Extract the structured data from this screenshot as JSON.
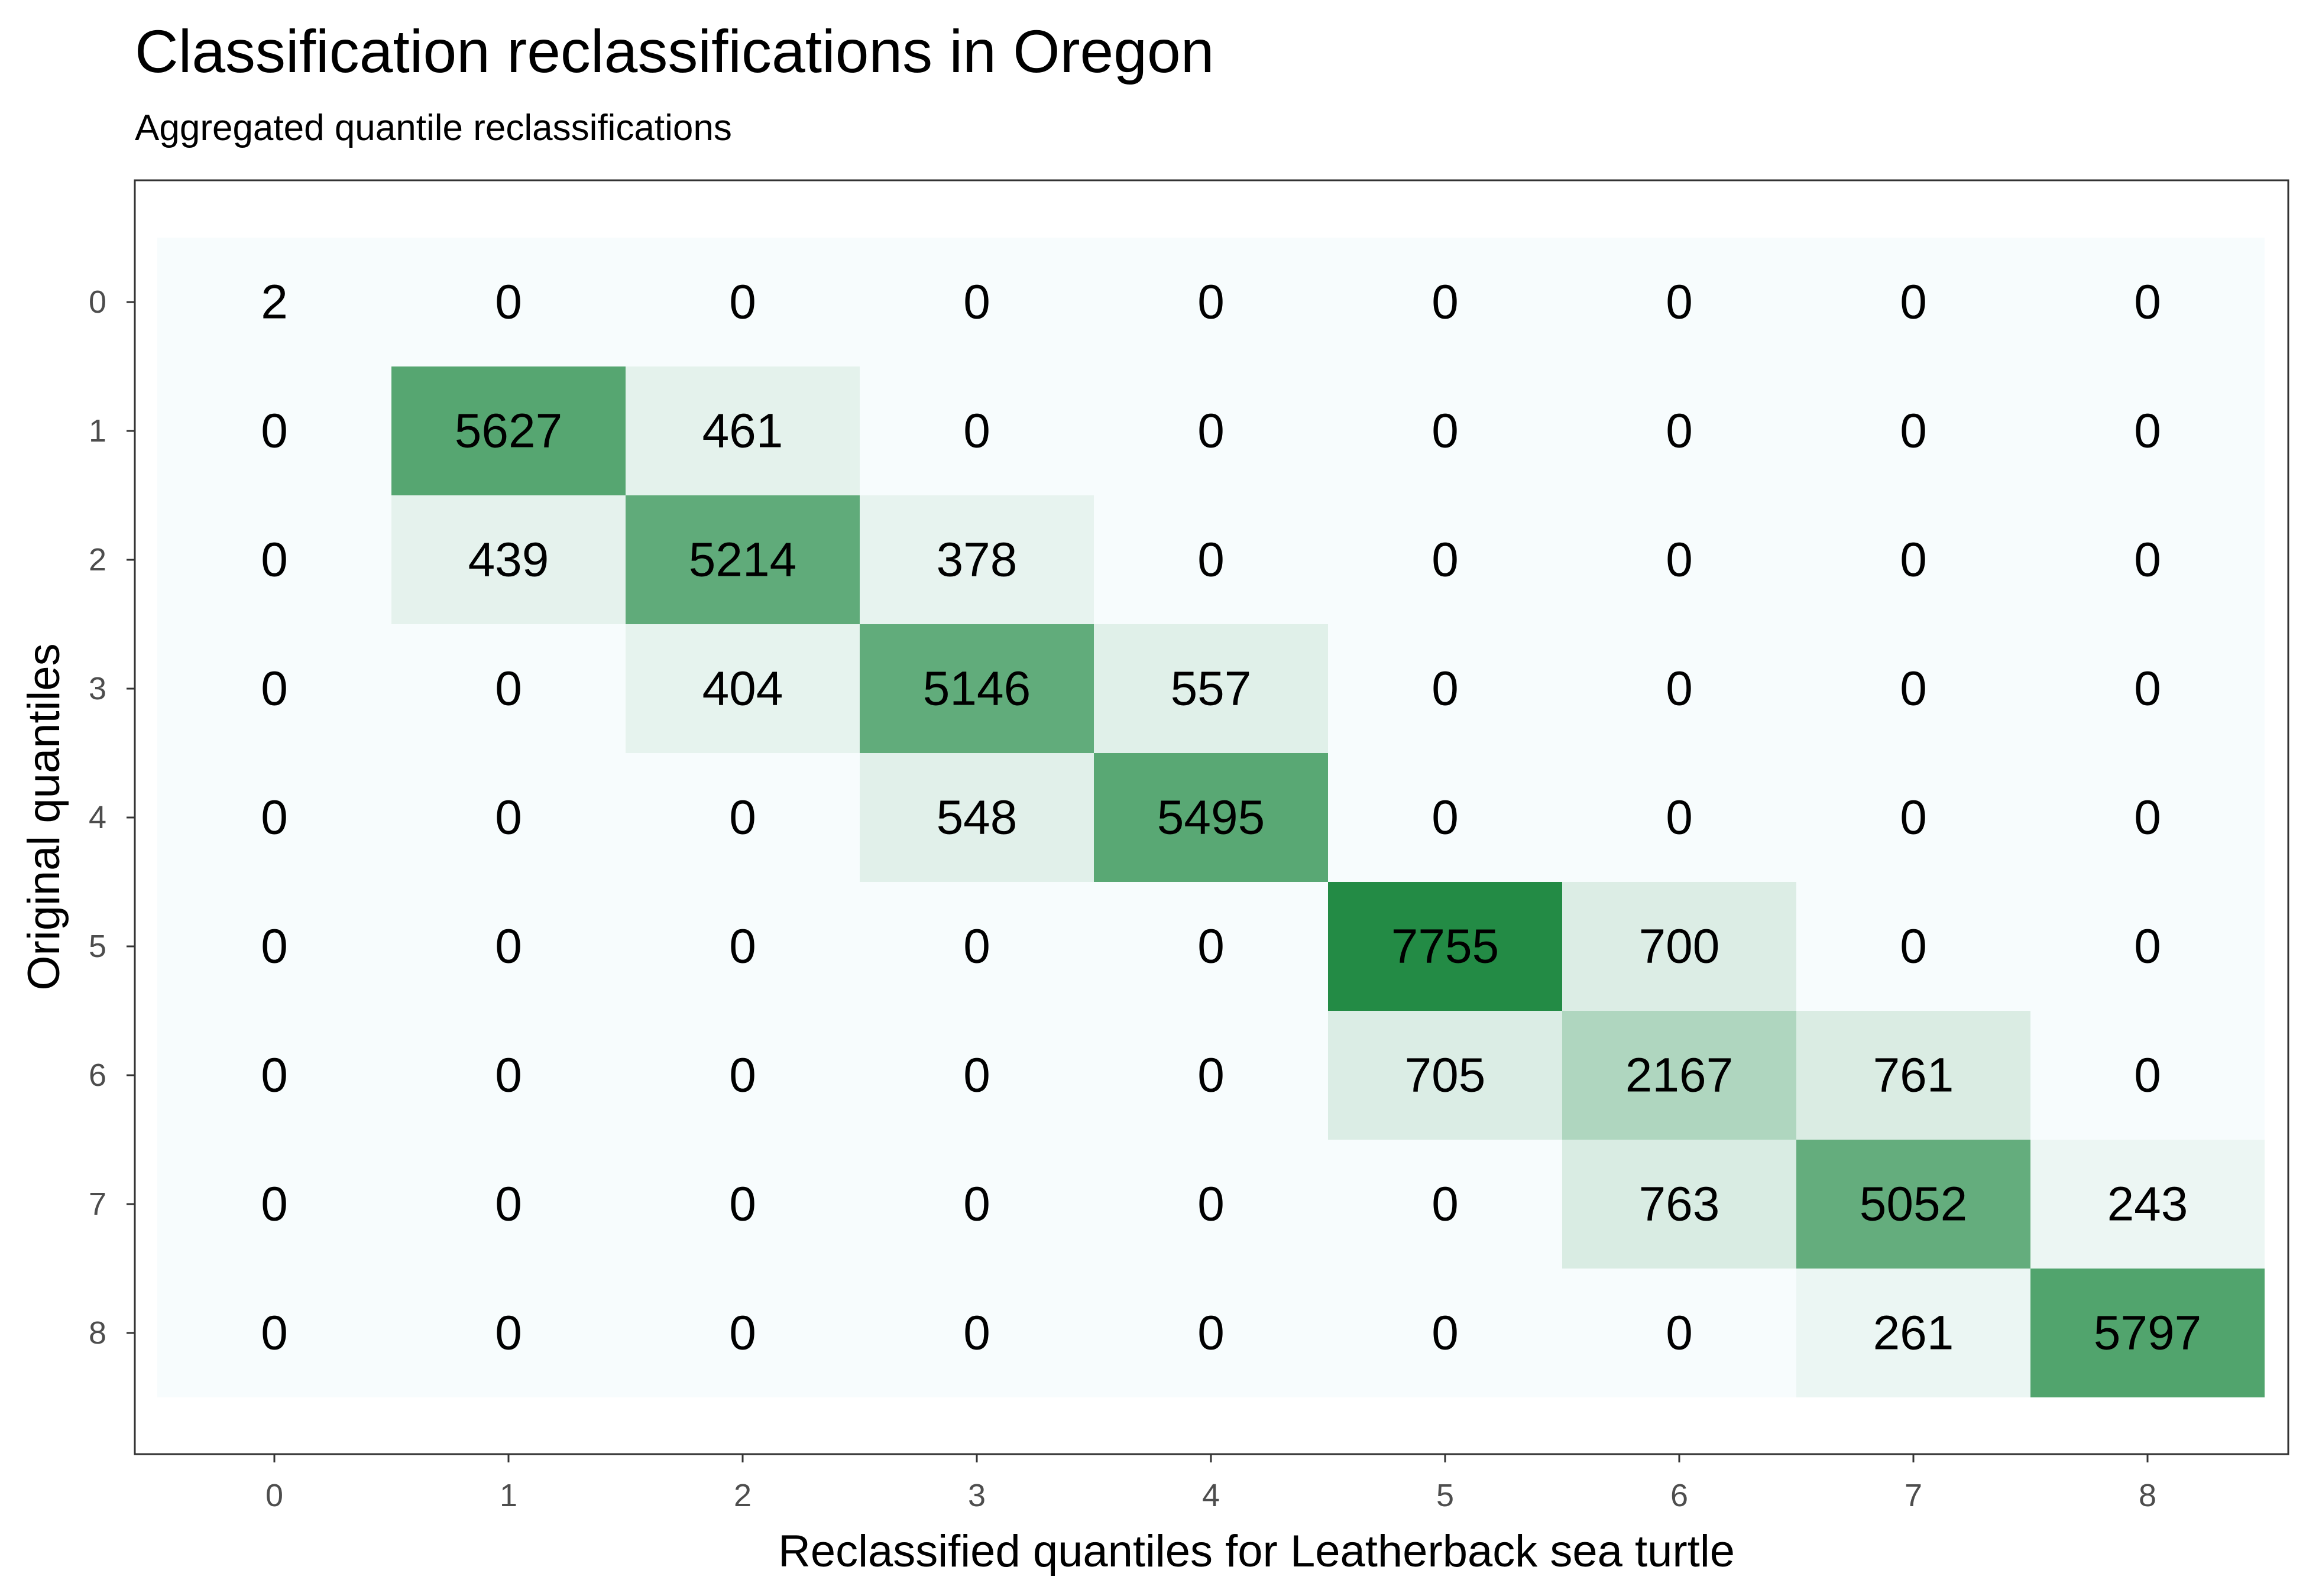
{
  "chart_data": {
    "type": "heatmap",
    "title": "Classification reclassifications in Oregon",
    "subtitle": "Aggregated quantile reclassifications",
    "xlabel": "Reclassified quantiles for Leatherback sea turtle",
    "ylabel": "Original quantiles",
    "x_categories": [
      "0",
      "1",
      "2",
      "3",
      "4",
      "5",
      "6",
      "7",
      "8"
    ],
    "y_categories": [
      "0",
      "1",
      "2",
      "3",
      "4",
      "5",
      "6",
      "7",
      "8"
    ],
    "values": [
      [
        2,
        0,
        0,
        0,
        0,
        0,
        0,
        0,
        0
      ],
      [
        0,
        5627,
        461,
        0,
        0,
        0,
        0,
        0,
        0
      ],
      [
        0,
        439,
        5214,
        378,
        0,
        0,
        0,
        0,
        0
      ],
      [
        0,
        0,
        404,
        5146,
        557,
        0,
        0,
        0,
        0
      ],
      [
        0,
        0,
        0,
        548,
        5495,
        0,
        0,
        0,
        0
      ],
      [
        0,
        0,
        0,
        0,
        0,
        7755,
        700,
        0,
        0
      ],
      [
        0,
        0,
        0,
        0,
        0,
        705,
        2167,
        761,
        0
      ],
      [
        0,
        0,
        0,
        0,
        0,
        0,
        763,
        5052,
        243
      ],
      [
        0,
        0,
        0,
        0,
        0,
        0,
        0,
        261,
        5797
      ]
    ],
    "color_low": "#f7fcfd",
    "color_high": "#238b45",
    "legend": "none",
    "grid": false
  }
}
